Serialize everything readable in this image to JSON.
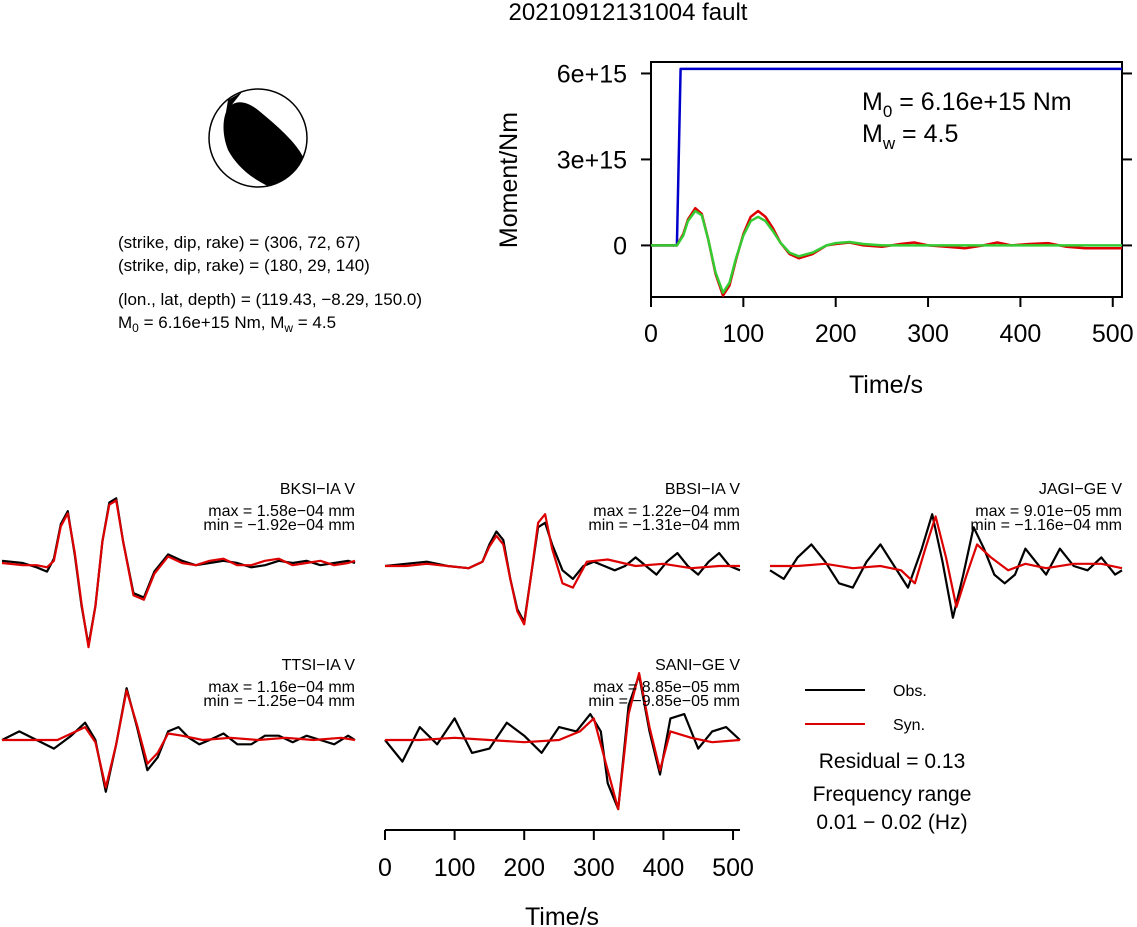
{
  "title": "20210912131004 fault",
  "mechanism": {
    "line1": "(strike, dip, rake) = (306, 72, 67)",
    "line2": "(strike, dip, rake) = (180, 29, 140)",
    "line3": "(lon., lat, depth) = (119.43, −8.29, 150.0)",
    "m0_prefix": "M",
    "m0_sub": "0",
    "m0_rest": " = 6.16e+15 Nm, M",
    "mw_sub": "w",
    "mw_rest": " = 4.5"
  },
  "stf_chart": {
    "ylabel": "Moment/Nm",
    "xlabel": "Time/s",
    "yticks": [
      "0",
      "3e+15",
      "6e+15"
    ],
    "xticks": [
      "0",
      "100",
      "200",
      "300",
      "400",
      "500"
    ],
    "annotation": {
      "m0_symbol": "M",
      "m0_sub": "0",
      "m0_text": " = 6.16e+15 Nm",
      "mw_symbol": "M",
      "mw_sub": "w",
      "mw_text": " = 4.5"
    }
  },
  "chart_data": [
    {
      "type": "line",
      "xlim": [
        0,
        510
      ],
      "ylim": [
        -1800000000000000.0,
        6400000000000000.0
      ],
      "xlabel": "Time/s",
      "ylabel": "Moment/Nm",
      "series": [
        {
          "color": "#0000cc",
          "x": [
            0,
            28,
            32,
            510
          ],
          "y": [
            0,
            0,
            6160000000000000.0,
            6160000000000000.0
          ]
        },
        {
          "color": "#dd0000",
          "x": [
            0,
            20,
            28,
            35,
            40,
            48,
            55,
            62,
            70,
            78,
            85,
            92,
            100,
            108,
            116,
            124,
            132,
            140,
            150,
            160,
            175,
            190,
            200,
            215,
            230,
            250,
            270,
            285,
            300,
            320,
            340,
            360,
            375,
            390,
            410,
            430,
            450,
            470,
            490,
            510
          ],
          "y": [
            0,
            0,
            0,
            400000000000000.0,
            900000000000000.0,
            1300000000000000.0,
            1100000000000000.0,
            200000000000000.0,
            -1000000000000000.0,
            -1750000000000000.0,
            -1400000000000000.0,
            -500000000000000.0,
            400000000000000.0,
            1000000000000000.0,
            1200000000000000.0,
            1000000000000000.0,
            600000000000000.0,
            100000000000000.0,
            -300000000000000.0,
            -450000000000000.0,
            -300000000000000.0,
            0.0,
            50000000000000.0,
            100000000000000.0,
            0.0,
            -50000000000000.0,
            50000000000000.0,
            100000000000000.0,
            0.0,
            -50000000000000.0,
            -100000000000000.0,
            0.0,
            100000000000000.0,
            0.0,
            50000000000000.0,
            80000000000000.0,
            -50000000000000.0,
            -100000000000000.0,
            -100000000000000.0,
            -100000000000000.0
          ]
        },
        {
          "color": "#33cc33",
          "x": [
            0,
            20,
            28,
            35,
            40,
            48,
            55,
            62,
            70,
            78,
            85,
            92,
            100,
            108,
            116,
            124,
            132,
            140,
            150,
            160,
            175,
            190,
            200,
            215,
            230,
            250,
            270,
            300,
            350,
            400,
            450,
            510
          ],
          "y": [
            0,
            0,
            0,
            350000000000000.0,
            850000000000000.0,
            1200000000000000.0,
            1050000000000000.0,
            200000000000000.0,
            -950000000000000.0,
            -1650000000000000.0,
            -1300000000000000.0,
            -450000000000000.0,
            350000000000000.0,
            850000000000000.0,
            1000000000000000.0,
            850000000000000.0,
            500000000000000.0,
            100000000000000.0,
            -250000000000000.0,
            -380000000000000.0,
            -250000000000000.0,
            0.0,
            80000000000000.0,
            120000000000000.0,
            50000000000000.0,
            0.0,
            0.0,
            0.0,
            0.0,
            0.0,
            0.0,
            0.0
          ]
        }
      ]
    },
    {
      "type": "line",
      "xlim": [
        0,
        510
      ],
      "xlabel": "Time/s",
      "xticks": [
        "0",
        "100",
        "200",
        "300",
        "400",
        "500"
      ],
      "stations": [
        {
          "name": "BKSI−IA V",
          "max": "max = 1.58e−04 mm",
          "min": "min = −1.92e−04 mm",
          "obs_x": [
            0,
            30,
            50,
            65,
            75,
            85,
            95,
            105,
            115,
            125,
            135,
            145,
            155,
            165,
            175,
            190,
            205,
            220,
            240,
            260,
            280,
            300,
            320,
            340,
            360,
            380,
            400,
            420,
            440,
            460,
            480,
            500,
            510
          ],
          "obs_y": [
            0.05,
            0.0,
            -0.1,
            -0.2,
            0.1,
            0.9,
            1.2,
            0.2,
            -1.0,
            -1.9,
            -1.0,
            0.5,
            1.4,
            1.5,
            0.5,
            -0.7,
            -0.8,
            -0.2,
            0.2,
            0.05,
            -0.05,
            0.0,
            0.05,
            0.0,
            -0.1,
            -0.05,
            0.05,
            0.0,
            0.05,
            -0.05,
            0.0,
            0.05,
            0.0
          ],
          "syn_x": [
            0,
            30,
            50,
            65,
            75,
            85,
            95,
            105,
            115,
            125,
            135,
            145,
            155,
            165,
            175,
            190,
            205,
            220,
            240,
            260,
            280,
            300,
            320,
            340,
            360,
            380,
            400,
            420,
            440,
            460,
            480,
            500,
            510
          ],
          "syn_y": [
            0.0,
            -0.05,
            -0.05,
            -0.1,
            0.05,
            0.85,
            1.15,
            0.25,
            -0.95,
            -1.95,
            -1.0,
            0.5,
            1.35,
            1.45,
            0.5,
            -0.75,
            -0.85,
            -0.25,
            0.15,
            0.0,
            -0.05,
            0.05,
            0.1,
            -0.05,
            -0.05,
            0.05,
            0.1,
            -0.05,
            0.0,
            0.05,
            -0.05,
            0.0,
            0.05
          ]
        },
        {
          "name": "BBSI−IA V",
          "max": "max = 1.22e−04 mm",
          "min": "min = −1.31e−04 mm",
          "obs_x": [
            0,
            30,
            60,
            90,
            120,
            140,
            150,
            160,
            170,
            180,
            190,
            200,
            210,
            220,
            230,
            240,
            255,
            270,
            285,
            300,
            315,
            330,
            345,
            360,
            375,
            390,
            405,
            420,
            435,
            450,
            465,
            480,
            495,
            510
          ],
          "obs_y": [
            0.0,
            0.05,
            0.1,
            0.0,
            -0.05,
            0.1,
            0.5,
            0.8,
            0.6,
            -0.3,
            -1.0,
            -1.3,
            -0.2,
            0.9,
            1.0,
            0.5,
            -0.1,
            -0.3,
            0.0,
            0.1,
            0.0,
            -0.1,
            0.0,
            0.2,
            0.0,
            -0.2,
            0.1,
            0.3,
            0.0,
            -0.2,
            0.1,
            0.3,
            0.0,
            -0.1
          ],
          "syn_x": [
            0,
            30,
            60,
            90,
            120,
            140,
            150,
            160,
            170,
            180,
            190,
            200,
            210,
            220,
            230,
            240,
            255,
            270,
            290,
            320,
            360,
            400,
            440,
            480,
            510
          ],
          "syn_y": [
            0.0,
            0.0,
            0.05,
            0.0,
            -0.05,
            0.1,
            0.45,
            0.7,
            0.5,
            -0.3,
            -1.05,
            -1.35,
            -0.2,
            1.0,
            1.2,
            0.4,
            -0.4,
            -0.5,
            0.1,
            0.15,
            0.0,
            0.05,
            -0.05,
            0.0,
            0.0
          ]
        },
        {
          "name": "JAGI−GE V",
          "max": "max = 9.01e−05 mm",
          "min": "min = −1.16e−04 mm",
          "obs_x": [
            0,
            20,
            40,
            60,
            80,
            100,
            120,
            140,
            160,
            180,
            200,
            220,
            235,
            250,
            265,
            280,
            295,
            310,
            325,
            340,
            355,
            370,
            385,
            400,
            420,
            440,
            460,
            480,
            500,
            510
          ],
          "obs_y": [
            -0.1,
            -0.3,
            0.2,
            0.5,
            0.1,
            -0.4,
            -0.5,
            0.1,
            0.5,
            0.0,
            -0.5,
            0.4,
            1.2,
            0.1,
            -1.2,
            -0.2,
            0.9,
            0.4,
            -0.2,
            -0.4,
            -0.2,
            0.4,
            0.1,
            -0.2,
            0.4,
            0.0,
            -0.1,
            0.2,
            -0.2,
            -0.1
          ],
          "syn_x": [
            0,
            40,
            80,
            120,
            160,
            190,
            210,
            225,
            240,
            255,
            270,
            285,
            300,
            320,
            345,
            370,
            400,
            440,
            480,
            510
          ],
          "syn_y": [
            0.0,
            0.0,
            0.05,
            -0.05,
            0.0,
            -0.1,
            -0.4,
            0.4,
            1.15,
            0.2,
            -0.95,
            -0.2,
            0.5,
            0.2,
            -0.1,
            0.05,
            -0.05,
            0.05,
            0.05,
            -0.05
          ]
        },
        {
          "name": "TTSI−IA V",
          "max": "max = 1.16e−04 mm",
          "min": "min = −1.25e−04 mm",
          "obs_x": [
            0,
            25,
            50,
            75,
            100,
            120,
            135,
            150,
            165,
            180,
            195,
            210,
            225,
            240,
            255,
            270,
            285,
            300,
            320,
            340,
            360,
            380,
            400,
            420,
            440,
            460,
            480,
            500,
            510
          ],
          "obs_y": [
            0.0,
            0.2,
            0.0,
            -0.2,
            0.1,
            0.4,
            0.0,
            -1.2,
            -0.1,
            1.2,
            0.3,
            -0.7,
            -0.4,
            0.2,
            0.3,
            0.05,
            -0.1,
            0.0,
            0.15,
            -0.1,
            -0.1,
            0.1,
            0.1,
            -0.05,
            0.1,
            0.0,
            -0.1,
            0.1,
            0.0
          ],
          "syn_x": [
            0,
            40,
            80,
            120,
            135,
            150,
            165,
            180,
            195,
            210,
            225,
            240,
            260,
            290,
            330,
            370,
            410,
            450,
            490,
            510
          ],
          "syn_y": [
            0.0,
            0.0,
            0.0,
            0.3,
            -0.05,
            -1.1,
            -0.1,
            1.15,
            0.35,
            -0.55,
            -0.3,
            0.15,
            0.1,
            0.0,
            0.05,
            0.0,
            0.05,
            0.0,
            0.05,
            0.0
          ]
        },
        {
          "name": "SANI−GE V",
          "max": "max = 8.85e−05 mm",
          "min": "min = −9.85e−05 mm",
          "obs_x": [
            0,
            25,
            50,
            75,
            100,
            125,
            150,
            175,
            200,
            225,
            250,
            275,
            295,
            310,
            320,
            335,
            350,
            365,
            380,
            395,
            410,
            430,
            450,
            470,
            490,
            510
          ],
          "obs_y": [
            0.0,
            -0.5,
            0.3,
            -0.1,
            0.5,
            -0.3,
            -0.2,
            0.4,
            0.1,
            -0.3,
            0.3,
            0.2,
            0.6,
            0.2,
            -1.0,
            -1.6,
            0.8,
            1.5,
            0.2,
            -0.8,
            0.5,
            0.6,
            -0.2,
            0.2,
            0.3,
            0.0
          ],
          "syn_x": [
            0,
            50,
            100,
            150,
            200,
            250,
            280,
            300,
            320,
            335,
            350,
            365,
            380,
            395,
            410,
            440,
            470,
            510
          ],
          "syn_y": [
            0.0,
            0.0,
            0.05,
            0.0,
            -0.05,
            0.0,
            0.2,
            0.5,
            -0.7,
            -1.6,
            0.6,
            1.55,
            0.3,
            -0.7,
            0.2,
            0.05,
            -0.05,
            0.0
          ]
        }
      ]
    }
  ],
  "legend": {
    "obs_label": "Obs.",
    "syn_label": "Syn.",
    "residual": "Residual = 0.13",
    "freq_title": "Frequency range",
    "freq_value": "0.01 − 0.02 (Hz)"
  },
  "colors": {
    "obs": "#000000",
    "syn": "#dd0000",
    "stf": "#0000cc",
    "stf_green": "#33cc33"
  }
}
